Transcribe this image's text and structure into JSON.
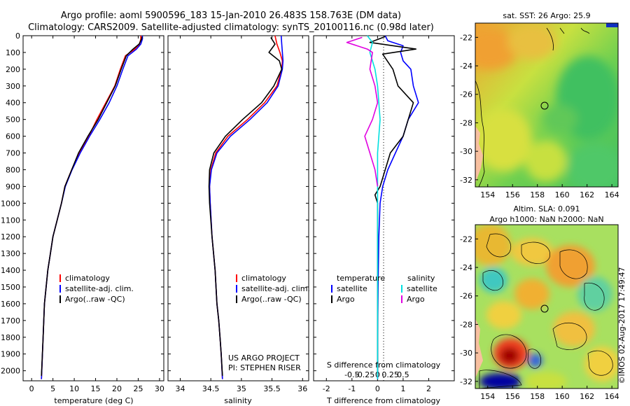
{
  "header": {
    "line1": "Argo profile: aoml 5900596_183 15-Jan-2010 26.483S 158.763E (DM data)",
    "line2": "Climatology: CARS2009. Satellite-adjusted climatology: synTS_20100116.nc (0.98d later)"
  },
  "side_label": "©IMOS 02-Aug-2017 17:49:47",
  "project_note": {
    "line1": "US ARGO PROJECT",
    "line2": "PI: STEPHEN RISER"
  },
  "colors": {
    "climatology": "#ff0000",
    "satellite": "#0000ff",
    "argo": "#000000",
    "satellite_s": "#00e0e0",
    "argo_s": "#e000e0"
  },
  "chart_data": [
    {
      "id": "temperature",
      "type": "line",
      "xlabel": "temperature (deg C)",
      "ylabel": "",
      "xlim": [
        -2,
        31
      ],
      "ylim": [
        2060,
        0
      ],
      "xticks": [
        0,
        5,
        10,
        15,
        20,
        25,
        30
      ],
      "yticks": [
        0,
        100,
        200,
        300,
        400,
        500,
        600,
        700,
        800,
        900,
        1000,
        1100,
        1200,
        1300,
        1400,
        1500,
        1600,
        1700,
        1800,
        1900,
        2000
      ],
      "legend": [
        "climatology",
        "satellite-adj. clim.",
        "Argo(..raw -QC)"
      ],
      "series": [
        {
          "name": "climatology",
          "color": "#ff0000",
          "x": [
            25.6,
            25.6,
            25.3,
            24.2,
            22.0,
            20.8,
            19.5,
            17.4,
            15.3,
            13.4,
            11.3,
            9.4,
            7.8,
            7.0,
            6.0,
            5.0,
            4.4,
            3.8,
            3.4,
            3.0,
            2.7,
            2.3
          ],
          "y": [
            0,
            20,
            50,
            80,
            120,
            200,
            300,
            400,
            500,
            600,
            700,
            800,
            900,
            1000,
            1100,
            1200,
            1300,
            1400,
            1500,
            1600,
            1800,
            2050
          ]
        },
        {
          "name": "satellite-adj. clim.",
          "color": "#0000ff",
          "x": [
            26.0,
            26.0,
            25.6,
            24.6,
            22.6,
            21.4,
            20.0,
            18.2,
            16.0,
            13.6,
            11.4,
            9.5,
            7.9,
            7.0,
            6.0,
            5.0,
            4.4,
            3.8,
            3.4,
            3.0,
            2.7,
            2.3
          ],
          "y": [
            0,
            20,
            50,
            80,
            120,
            200,
            300,
            400,
            500,
            600,
            700,
            800,
            900,
            1000,
            1100,
            1200,
            1300,
            1400,
            1500,
            1600,
            1800,
            2050
          ]
        },
        {
          "name": "Argo(..raw -QC)",
          "color": "#000000",
          "x": [
            25.9,
            25.8,
            25.2,
            23.8,
            22.2,
            21.0,
            19.6,
            17.6,
            15.6,
            13.2,
            11.0,
            9.4,
            7.8,
            7.0,
            6.0,
            5.0,
            4.4,
            3.8,
            3.4,
            3.0,
            2.7,
            2.3
          ],
          "y": [
            5,
            20,
            50,
            80,
            120,
            200,
            300,
            400,
            500,
            600,
            700,
            800,
            900,
            1000,
            1100,
            1200,
            1300,
            1400,
            1500,
            1600,
            1800,
            2030
          ]
        }
      ]
    },
    {
      "id": "salinity",
      "type": "line",
      "xlabel": "salinity",
      "xlim": [
        33.8,
        36.1
      ],
      "ylim": [
        2060,
        0
      ],
      "xticks": [
        34,
        34.5,
        35,
        35.5,
        36
      ],
      "legend": [
        "climatology",
        "satellite-adj. clim.",
        "Argo(..raw -QC)"
      ],
      "series": [
        {
          "name": "climatology",
          "color": "#ff0000",
          "x": [
            35.55,
            35.58,
            35.63,
            35.67,
            35.66,
            35.58,
            35.38,
            35.1,
            34.78,
            34.58,
            34.5,
            34.48,
            34.49,
            34.52,
            34.57,
            34.6,
            34.63,
            34.65,
            34.67,
            34.69
          ],
          "y": [
            0,
            50,
            100,
            150,
            200,
            300,
            400,
            500,
            600,
            700,
            800,
            900,
            1000,
            1200,
            1400,
            1600,
            1700,
            1800,
            1900,
            2050
          ]
        },
        {
          "name": "satellite-adj. clim.",
          "color": "#0000ff",
          "x": [
            35.65,
            35.66,
            35.67,
            35.68,
            35.67,
            35.6,
            35.42,
            35.14,
            34.82,
            34.6,
            34.51,
            34.48,
            34.49,
            34.52,
            34.57,
            34.6,
            34.63,
            34.65,
            34.67,
            34.69
          ],
          "y": [
            0,
            50,
            100,
            150,
            200,
            300,
            400,
            500,
            600,
            700,
            800,
            900,
            1000,
            1200,
            1400,
            1600,
            1700,
            1800,
            1900,
            2050
          ]
        },
        {
          "name": "Argo(..raw -QC)",
          "color": "#000000",
          "x": [
            35.48,
            35.55,
            35.45,
            35.62,
            35.66,
            35.53,
            35.33,
            35.02,
            34.74,
            34.55,
            34.48,
            34.47,
            34.48,
            34.52,
            34.57,
            34.6,
            34.63,
            34.65,
            34.67,
            34.69
          ],
          "y": [
            10,
            50,
            100,
            150,
            200,
            300,
            400,
            500,
            600,
            700,
            800,
            900,
            1000,
            1200,
            1400,
            1600,
            1700,
            1800,
            1900,
            2030
          ]
        }
      ]
    },
    {
      "id": "difference",
      "type": "line",
      "xlabel": "T difference from climatology",
      "top_label": "S difference from climatology",
      "xlim": [
        -2.5,
        3.0
      ],
      "ylim": [
        2060,
        0
      ],
      "xticks": [
        -2,
        -1,
        0,
        1,
        2
      ],
      "top_ticks": [
        "-0.5",
        "-0.25",
        "0",
        "0.25",
        "0.5"
      ],
      "legend_titles": [
        "temperature",
        "salinity"
      ],
      "legend": [
        "satellite",
        "Argo",
        "satellite",
        "Argo"
      ],
      "series": [
        {
          "name": "T satellite",
          "color": "#0000ff",
          "x": [
            0.3,
            0.4,
            1.0,
            0.9,
            1.0,
            1.3,
            1.4,
            1.6,
            1.2,
            1.0,
            0.7,
            0.4,
            0.2,
            0.1,
            0.05,
            0.02,
            0.0,
            0.0
          ],
          "y": [
            0,
            30,
            60,
            100,
            150,
            200,
            300,
            400,
            500,
            600,
            700,
            800,
            900,
            1000,
            1200,
            1500,
            1800,
            2050
          ]
        },
        {
          "name": "T Argo",
          "color": "#000000",
          "x": [
            0.3,
            -0.3,
            1.5,
            0.2,
            0.6,
            0.8,
            1.4,
            1.2,
            1.0,
            0.5,
            0.3,
            0.1,
            -0.1,
            0.0,
            0.0,
            0.0
          ],
          "y": [
            5,
            40,
            80,
            110,
            200,
            300,
            400,
            500,
            600,
            700,
            800,
            900,
            950,
            1000,
            1500,
            2030
          ]
        },
        {
          "name": "S satellite",
          "color": "#00e0e0",
          "x": [
            -0.4,
            -0.2,
            -0.3,
            -0.1,
            0.0,
            0.05,
            0.1,
            0.05,
            0.0,
            0.0,
            0.0,
            0.0,
            0.0
          ],
          "y": [
            0,
            40,
            100,
            200,
            300,
            400,
            500,
            600,
            700,
            900,
            1200,
            1600,
            2050
          ]
        },
        {
          "name": "S Argo",
          "color": "#e000e0",
          "x": [
            -0.6,
            -1.2,
            -0.4,
            -0.2,
            -0.3,
            -0.1,
            0.0,
            -0.2,
            -0.5,
            -0.3,
            -0.1,
            0.0
          ],
          "y": [
            10,
            40,
            80,
            100,
            200,
            300,
            400,
            500,
            600,
            700,
            800,
            900
          ]
        }
      ]
    },
    {
      "id": "sst_map",
      "type": "heatmap",
      "title": "sat. SST: 26 Argo: 25.9",
      "xticks": [
        154,
        156,
        158,
        160,
        162,
        164
      ],
      "yticks": [
        -22,
        -24,
        -26,
        -28,
        -30,
        -32
      ],
      "xlim": [
        153,
        164.5
      ],
      "ylim": [
        -32.5,
        -21
      ],
      "profile_location": {
        "lon": 158.763,
        "lat": -26.483
      }
    },
    {
      "id": "sla_map",
      "type": "heatmap",
      "title_line1": "Altim. SLA: 0.091",
      "title_line2": "Argo h1000: NaN h2000: NaN",
      "xticks": [
        154,
        156,
        158,
        160,
        162,
        164
      ],
      "yticks": [
        -22,
        -24,
        -26,
        -28,
        -30,
        -32
      ],
      "xlim": [
        153,
        164.5
      ],
      "ylim": [
        -32.5,
        -21
      ],
      "profile_location": {
        "lon": 158.763,
        "lat": -26.483
      }
    }
  ]
}
